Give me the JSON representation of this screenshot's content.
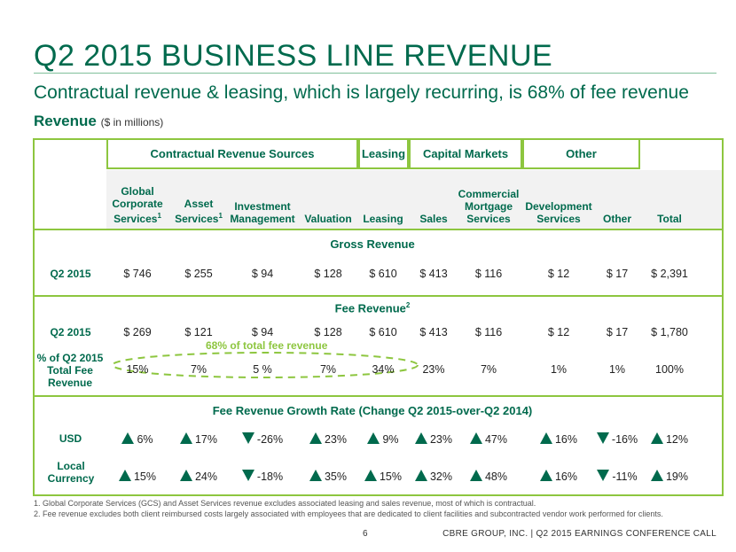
{
  "title": "Q2 2015 BUSINESS LINE REVENUE",
  "subtitle": "Contractual revenue & leasing, which is largely recurring, is 68% of fee revenue",
  "section": {
    "label": "Revenue",
    "unit": "($ in millions)"
  },
  "groups": [
    "Contractual Revenue Sources",
    "Leasing",
    "Capital Markets",
    "Other"
  ],
  "columns": [
    {
      "label": "Global Corporate Services",
      "sup": "1"
    },
    {
      "label": "Asset Services",
      "sup": "1"
    },
    {
      "label": "Investment Management",
      "sup": ""
    },
    {
      "label": "Valuation",
      "sup": ""
    },
    {
      "label": "Leasing",
      "sup": ""
    },
    {
      "label": "Sales",
      "sup": ""
    },
    {
      "label": "Commercial Mortgage Services",
      "sup": ""
    },
    {
      "label": "Development Services",
      "sup": ""
    },
    {
      "label": "Other",
      "sup": ""
    },
    {
      "label": "Total",
      "sup": ""
    }
  ],
  "gross": {
    "heading": "Gross Revenue",
    "row_label": "Q2 2015",
    "values": [
      "$ 746",
      "$ 255",
      "$ 94",
      "$ 128",
      "$ 610",
      "$ 413",
      "$ 116",
      "$ 12",
      "$ 17",
      "$ 2,391"
    ]
  },
  "fee": {
    "heading": "Fee Revenue",
    "heading_sup": "2",
    "row_label": "Q2 2015",
    "values": [
      "$ 269",
      "$ 121",
      "$ 94",
      "$ 128",
      "$ 610",
      "$ 413",
      "$ 116",
      "$ 12",
      "$ 17",
      "$ 1,780"
    ],
    "note": "68% of total fee revenue",
    "pct_label": "% of Q2 2015 Total Fee Revenue",
    "pct_values": [
      "15%",
      "7%",
      "5 %",
      "7%",
      "34%",
      "23%",
      "7%",
      "1%",
      "1%",
      "100%"
    ]
  },
  "growth": {
    "heading": "Fee Revenue Growth Rate (Change Q2 2015-over-Q2 2014)",
    "usd": {
      "label": "USD",
      "values": [
        "6%",
        "17%",
        "-26%",
        "23%",
        "9%",
        "23%",
        "47%",
        "16%",
        "-16%",
        "12%"
      ],
      "dirs": [
        "up",
        "up",
        "down",
        "up",
        "up",
        "up",
        "up",
        "up",
        "down",
        "up"
      ]
    },
    "local": {
      "label": "Local Currency",
      "values": [
        "15%",
        "24%",
        "-18%",
        "35%",
        "15%",
        "32%",
        "48%",
        "16%",
        "-11%",
        "19%"
      ],
      "dirs": [
        "up",
        "up",
        "down",
        "up",
        "up",
        "up",
        "up",
        "up",
        "down",
        "up"
      ]
    }
  },
  "footnotes": [
    "1.   Global Corporate Services (GCS) and Asset Services revenue excludes associated leasing and sales revenue, most of which is contractual.",
    "2.   Fee revenue excludes both client reimbursed costs largely associated with employees that are dedicated to client facilities and subcontracted vendor work performed for clients."
  ],
  "page_number": "6",
  "footer": "CBRE GROUP, INC. | Q2 2015 EARNINGS CONFERENCE CALL",
  "colors": {
    "primary": "#006a4d",
    "accent": "#8dc63f"
  }
}
